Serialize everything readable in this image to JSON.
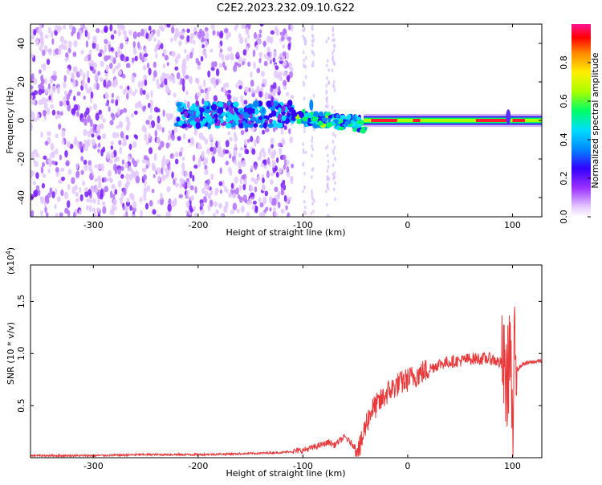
{
  "title": "C2E2.2023.232.09.10.G22",
  "chart_data": [
    {
      "type": "heatmap",
      "xlabel": "Height of straight line (km)",
      "ylabel": "Frequency (Hz)",
      "xlim": [
        -360,
        128
      ],
      "ylim": [
        -50,
        50
      ],
      "xticks": [
        -300,
        -200,
        -100,
        0,
        100
      ],
      "yticks": [
        -40,
        -20,
        0,
        20,
        40
      ],
      "colorbar": {
        "label": "Normalized spectral amplitude",
        "range": [
          0.0,
          1.0
        ],
        "ticks": [
          "0.0",
          "0.2",
          "0.4",
          "0.6",
          "0.8"
        ],
        "colormap": [
          "#ffffff",
          "#d9b3ff",
          "#8a2be2",
          "#3300ff",
          "#0088ff",
          "#00ddff",
          "#00ff66",
          "#aaff00",
          "#ffee00",
          "#ff8800",
          "#ff0000",
          "#ff1493"
        ]
      },
      "segments": [
        {
          "x_range": [
            -360,
            -110
          ],
          "character": "scattered noise",
          "amplitude": 0.1
        },
        {
          "x_range": [
            -220,
            -110
          ],
          "frequency_center": 3,
          "amplitude": 0.3
        },
        {
          "x_range": [
            -110,
            -40
          ],
          "frequency_center": 0,
          "amplitude": 0.5
        },
        {
          "x_range": [
            -40,
            128
          ],
          "frequency_center": 0,
          "amplitude": 0.85
        }
      ]
    },
    {
      "type": "line",
      "xlabel": "Height of straight line (km)",
      "ylabel": "SNR (10 * v/v)",
      "multiplier": "(x10",
      "multiplier_exp": "4",
      "multiplier_close": ")",
      "xlim": [
        -360,
        128
      ],
      "ylim": [
        0,
        1.85
      ],
      "xticks": [
        -300,
        -200,
        -100,
        0,
        100
      ],
      "yticks": [
        "0.5",
        "1.0",
        "1.5"
      ],
      "color": "#e8383a",
      "series": [
        {
          "x": [
            -360,
            -300,
            -250,
            -200,
            -150,
            -120,
            -100,
            -90,
            -80,
            -75,
            -70,
            -60,
            -50,
            -45,
            -40,
            -35,
            -30,
            -25,
            -20,
            -10,
            0,
            10,
            20,
            30,
            40,
            50,
            60,
            70,
            80,
            90,
            95,
            98,
            100,
            102,
            105,
            110,
            120,
            128
          ],
          "y": [
            0.02,
            0.02,
            0.03,
            0.03,
            0.04,
            0.05,
            0.07,
            0.1,
            0.13,
            0.15,
            0.12,
            0.2,
            0.1,
            0.1,
            0.32,
            0.45,
            0.5,
            0.55,
            0.62,
            0.7,
            0.75,
            0.8,
            0.85,
            0.9,
            0.92,
            0.93,
            0.95,
            0.95,
            0.95,
            0.9,
            0.7,
            1.2,
            0.05,
            1.0,
            0.85,
            0.9,
            0.92,
            0.93
          ]
        }
      ]
    }
  ]
}
